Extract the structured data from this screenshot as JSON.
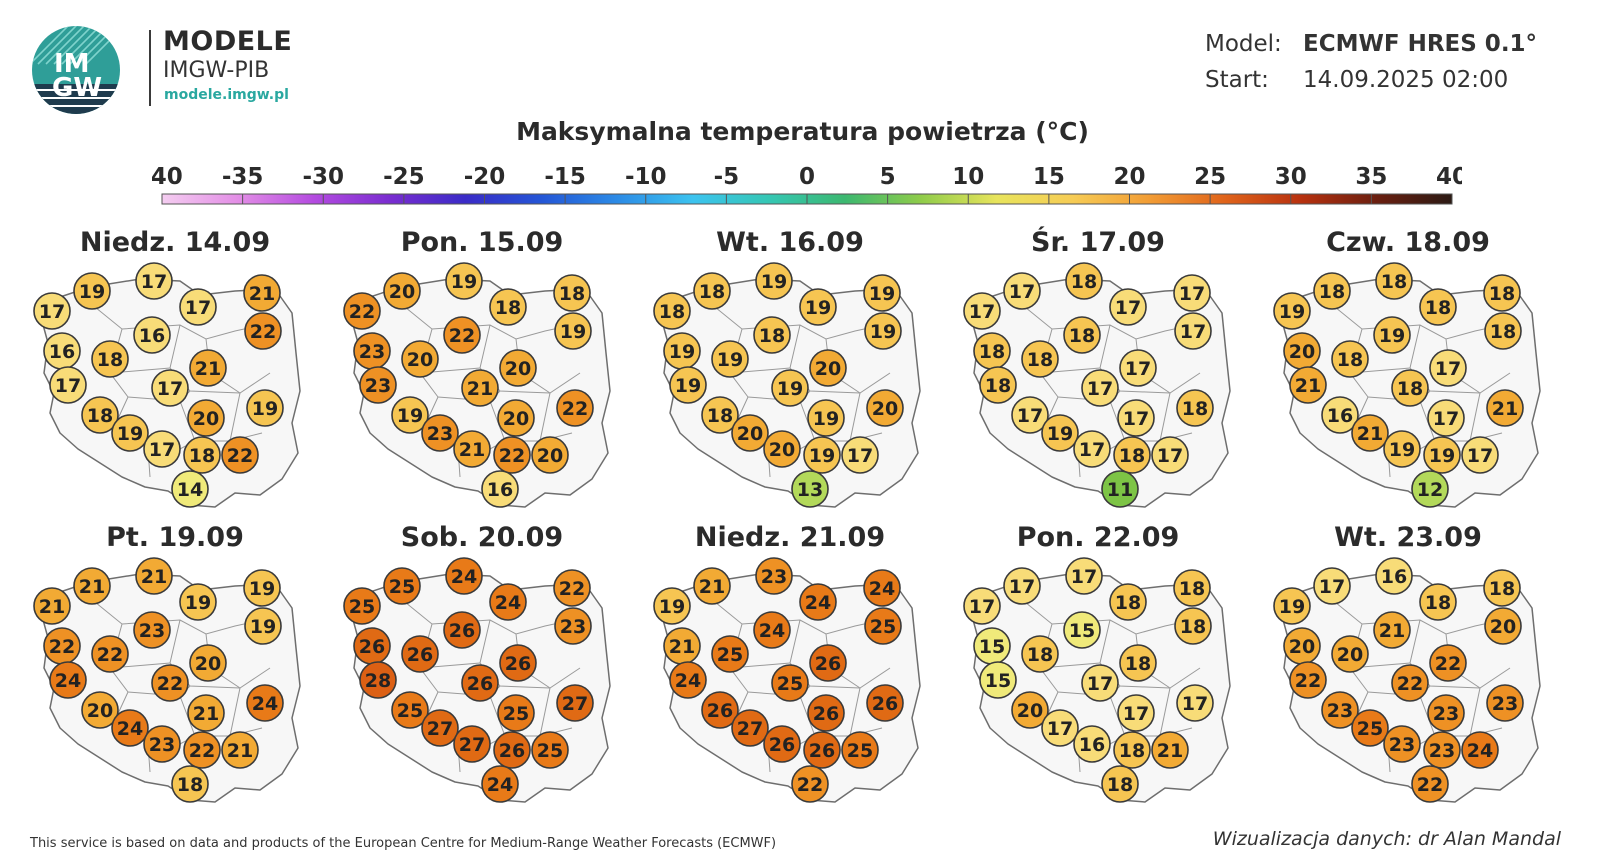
{
  "header": {
    "logo_text_top": "IM",
    "logo_text_bottom": "GW",
    "brand_title": "MODELE",
    "brand_subtitle": "IMGW-PIB",
    "brand_url": "modele.imgw.pl",
    "model_label": "Model:",
    "model_value": "ECMWF HRES 0.1°",
    "start_label": "Start:",
    "start_value": "14.09.2025 02:00"
  },
  "map_title": "Maksymalna temperatura powietrza (°C)",
  "scale": {
    "ticks": [
      "-40",
      "-35",
      "-30",
      "-25",
      "-20",
      "-15",
      "-10",
      "-5",
      "0",
      "5",
      "10",
      "15",
      "20",
      "25",
      "30",
      "35",
      "40"
    ],
    "min": -40,
    "max": 40,
    "gradient_colors": [
      "#f4cdf0",
      "#e38ee6",
      "#b44be0",
      "#7a2dd0",
      "#3a2bc7",
      "#2456d6",
      "#2c8be6",
      "#3cc3ef",
      "#35c7b4",
      "#3cb870",
      "#8fcc4a",
      "#e8e45c",
      "#f6cc55",
      "#f29d35",
      "#e0641b",
      "#b8310f",
      "#6b1f10",
      "#2b1a14"
    ]
  },
  "color_stops": [
    {
      "t": 11,
      "color": "#7dc445"
    },
    {
      "t": 13,
      "color": "#b3d95a"
    },
    {
      "t": 15,
      "color": "#f0ea7a"
    },
    {
      "t": 17,
      "color": "#f8dc78"
    },
    {
      "t": 19,
      "color": "#f6c552"
    },
    {
      "t": 21,
      "color": "#f2aa34"
    },
    {
      "t": 23,
      "color": "#ee9124"
    },
    {
      "t": 25,
      "color": "#e87a18"
    },
    {
      "t": 27,
      "color": "#e06a14"
    },
    {
      "t": 28,
      "color": "#dc6014"
    }
  ],
  "days": [
    {
      "label": "Niedz. 14.09",
      "values": [
        17,
        19,
        17,
        17,
        21,
        22,
        16,
        16,
        18,
        21,
        17,
        17,
        19,
        20,
        18,
        19,
        17,
        18,
        22,
        14
      ]
    },
    {
      "label": "Pon. 15.09",
      "values": [
        22,
        20,
        19,
        18,
        18,
        19,
        23,
        22,
        20,
        20,
        23,
        21,
        22,
        20,
        19,
        23,
        21,
        22,
        20,
        16
      ]
    },
    {
      "label": "Wt. 16.09",
      "values": [
        18,
        18,
        19,
        19,
        19,
        19,
        19,
        18,
        19,
        20,
        19,
        19,
        20,
        19,
        18,
        20,
        20,
        19,
        17,
        13
      ]
    },
    {
      "label": "Śr. 17.09",
      "values": [
        17,
        17,
        18,
        17,
        17,
        17,
        18,
        18,
        18,
        17,
        18,
        17,
        18,
        17,
        17,
        19,
        17,
        18,
        17,
        11
      ]
    },
    {
      "label": "Czw. 18.09",
      "values": [
        19,
        18,
        18,
        18,
        18,
        18,
        20,
        19,
        18,
        17,
        21,
        18,
        21,
        17,
        16,
        21,
        19,
        19,
        17,
        12
      ]
    },
    {
      "label": "Pt. 19.09",
      "values": [
        21,
        21,
        21,
        19,
        19,
        19,
        22,
        23,
        22,
        20,
        24,
        22,
        24,
        21,
        20,
        24,
        23,
        22,
        21,
        18
      ]
    },
    {
      "label": "Sob. 20.09",
      "values": [
        25,
        25,
        24,
        24,
        22,
        23,
        26,
        26,
        26,
        26,
        28,
        26,
        27,
        25,
        25,
        27,
        27,
        26,
        25,
        24
      ]
    },
    {
      "label": "Niedz. 21.09",
      "values": [
        19,
        21,
        23,
        24,
        24,
        25,
        21,
        24,
        25,
        26,
        24,
        25,
        26,
        26,
        26,
        27,
        26,
        26,
        25,
        22
      ]
    },
    {
      "label": "Pon. 22.09",
      "values": [
        17,
        17,
        17,
        18,
        18,
        18,
        15,
        15,
        18,
        18,
        15,
        17,
        17,
        17,
        20,
        17,
        16,
        18,
        21,
        18
      ]
    },
    {
      "label": "Wt. 23.09",
      "values": [
        19,
        17,
        16,
        18,
        18,
        20,
        20,
        21,
        20,
        22,
        22,
        22,
        23,
        23,
        23,
        25,
        23,
        23,
        24,
        22
      ]
    }
  ],
  "footer_left": "This service is based on data and products of the European Centre for Medium-Range Weather Forecasts (ECMWF)",
  "footer_right": "Wizualizacja danych: dr Alan Mandal"
}
